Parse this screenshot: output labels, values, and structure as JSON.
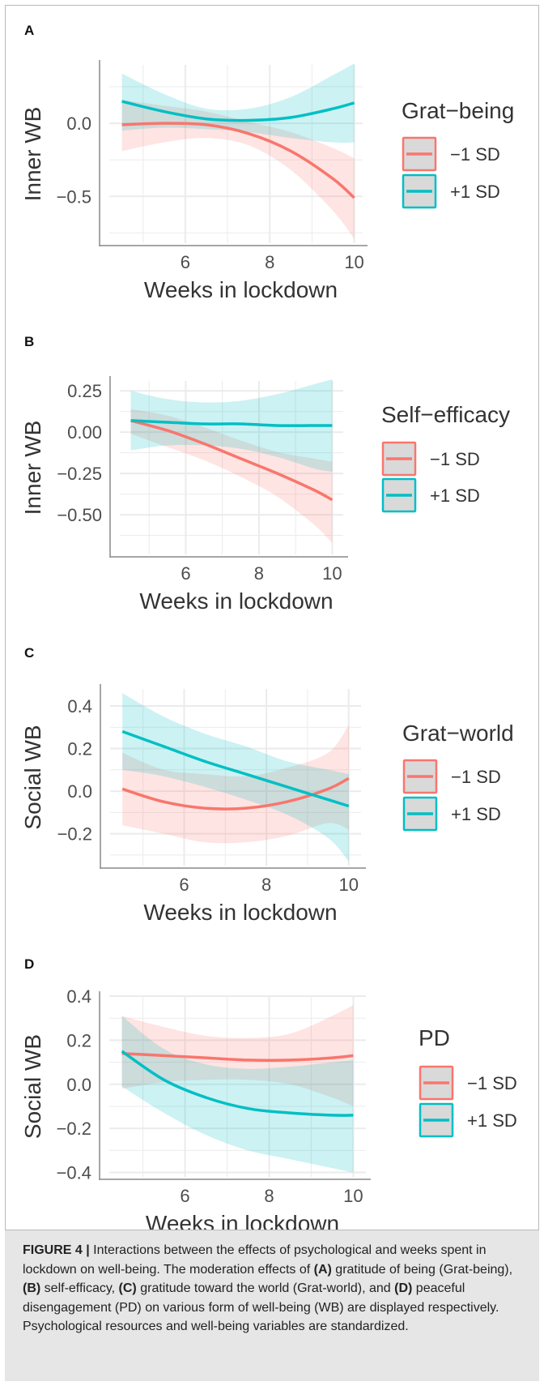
{
  "figure": {
    "caption_label": "FIGURE 4 |",
    "caption_parts": [
      {
        "text": " Interactions between the effects of psychological and weeks spent in lockdown on well-being. The moderation effects of ",
        "bold": false
      },
      {
        "text": "(A)",
        "bold": true
      },
      {
        "text": " gratitude of being (Grat-being), ",
        "bold": false
      },
      {
        "text": "(B)",
        "bold": true
      },
      {
        "text": " self-efficacy, ",
        "bold": false
      },
      {
        "text": "(C)",
        "bold": true
      },
      {
        "text": " gratitude toward the world (Grat-world), and ",
        "bold": false
      },
      {
        "text": "(D)",
        "bold": true
      },
      {
        "text": " peaceful disengagement (PD) on various form of well-being (WB) are displayed respectively. Psychological resources and well-being variables are standardized.",
        "bold": false
      }
    ]
  },
  "colors": {
    "minus_sd": "#F8766D",
    "plus_sd": "#00BFC4",
    "grid": "#EBEBEB",
    "axis": "#888888",
    "text": "#4D4D4D"
  },
  "chart_data": [
    {
      "panel": "A",
      "type": "line",
      "xlabel": "Weeks in lockdown",
      "ylabel": "Inner WB",
      "xlim": [
        4.2,
        10.2
      ],
      "ylim": [
        -0.82,
        0.4
      ],
      "xticks": [
        6,
        8,
        10
      ],
      "yticks": [
        0.0,
        -0.5
      ],
      "ytick_labels": [
        "0.0",
        "−0.5"
      ],
      "legend_title": "Grat−being",
      "legend_position": "right",
      "series": [
        {
          "name": "−1 SD",
          "color": "#F8766D",
          "x": [
            4.5,
            5.5,
            6.5,
            7.5,
            8.5,
            9.5,
            10.0
          ],
          "y": [
            -0.01,
            0.0,
            -0.01,
            -0.07,
            -0.19,
            -0.38,
            -0.51
          ],
          "lower": [
            -0.19,
            -0.13,
            -0.1,
            -0.15,
            -0.32,
            -0.6,
            -0.79
          ],
          "upper": [
            0.16,
            0.12,
            0.08,
            0.01,
            -0.06,
            -0.17,
            -0.24
          ]
        },
        {
          "name": "+1 SD",
          "color": "#00BFC4",
          "x": [
            4.5,
            5.5,
            6.5,
            7.5,
            8.5,
            9.5,
            10.0
          ],
          "y": [
            0.15,
            0.08,
            0.03,
            0.02,
            0.04,
            0.1,
            0.14
          ],
          "lower": [
            -0.05,
            -0.03,
            -0.04,
            -0.06,
            -0.1,
            -0.13,
            -0.13
          ],
          "upper": [
            0.34,
            0.2,
            0.1,
            0.1,
            0.18,
            0.33,
            0.41
          ]
        }
      ]
    },
    {
      "panel": "B",
      "type": "line",
      "xlabel": "Weeks in lockdown",
      "ylabel": "Inner WB",
      "xlim": [
        4.2,
        10.3
      ],
      "ylim": [
        -0.74,
        0.31
      ],
      "xticks": [
        6,
        8,
        10
      ],
      "yticks": [
        0.25,
        0.0,
        -0.25,
        -0.5
      ],
      "ytick_labels": [
        "0.25",
        "0.00",
        "−0.25",
        "−0.50"
      ],
      "legend_title": "Self−efficacy",
      "legend_position": "right",
      "series": [
        {
          "name": "−1 SD",
          "color": "#F8766D",
          "x": [
            4.5,
            5.5,
            6.5,
            7.5,
            8.5,
            9.5,
            10.0
          ],
          "y": [
            0.07,
            0.01,
            -0.07,
            -0.16,
            -0.25,
            -0.35,
            -0.41
          ],
          "lower": [
            -0.01,
            -0.09,
            -0.17,
            -0.27,
            -0.39,
            -0.56,
            -0.67
          ],
          "upper": [
            0.14,
            0.1,
            0.03,
            -0.05,
            -0.12,
            -0.16,
            -0.18
          ]
        },
        {
          "name": "+1 SD",
          "color": "#00BFC4",
          "x": [
            4.5,
            5.5,
            6.5,
            7.5,
            8.5,
            9.5,
            10.0
          ],
          "y": [
            0.07,
            0.06,
            0.05,
            0.05,
            0.04,
            0.04,
            0.04
          ],
          "lower": [
            -0.11,
            -0.08,
            -0.08,
            -0.1,
            -0.15,
            -0.22,
            -0.24
          ],
          "upper": [
            0.25,
            0.2,
            0.18,
            0.19,
            0.23,
            0.29,
            0.32
          ]
        }
      ]
    },
    {
      "panel": "C",
      "type": "line",
      "xlabel": "Weeks in lockdown",
      "ylabel": "Social WB",
      "xlim": [
        4.2,
        10.3
      ],
      "ylim": [
        -0.35,
        0.48
      ],
      "xticks": [
        6,
        8,
        10
      ],
      "yticks": [
        0.4,
        0.2,
        0.0,
        -0.2
      ],
      "ytick_labels": [
        "0.4",
        "0.2",
        "0.0",
        "−0.2"
      ],
      "legend_title": "Grat−world",
      "legend_position": "right",
      "series": [
        {
          "name": "−1 SD",
          "color": "#F8766D",
          "x": [
            4.5,
            5.5,
            6.5,
            7.5,
            8.5,
            9.5,
            10.0
          ],
          "y": [
            0.01,
            -0.05,
            -0.08,
            -0.08,
            -0.05,
            0.01,
            0.06
          ],
          "lower": [
            -0.16,
            -0.2,
            -0.24,
            -0.24,
            -0.21,
            -0.15,
            -0.18
          ],
          "upper": [
            0.18,
            0.1,
            0.08,
            0.07,
            0.11,
            0.18,
            0.31
          ]
        },
        {
          "name": "+1 SD",
          "color": "#00BFC4",
          "x": [
            4.5,
            5.5,
            6.5,
            7.5,
            8.5,
            9.5,
            10.0
          ],
          "y": [
            0.28,
            0.21,
            0.14,
            0.08,
            0.02,
            -0.04,
            -0.07
          ],
          "lower": [
            0.1,
            0.07,
            0.02,
            -0.04,
            -0.11,
            -0.22,
            -0.33
          ],
          "upper": [
            0.46,
            0.35,
            0.27,
            0.21,
            0.14,
            0.1,
            0.08
          ]
        }
      ]
    },
    {
      "panel": "D",
      "type": "line",
      "xlabel": "Weeks in lockdown",
      "ylabel": "Social WB",
      "xlim": [
        4.2,
        10.3
      ],
      "ylim": [
        -0.42,
        0.4
      ],
      "xticks": [
        6,
        8,
        10
      ],
      "yticks": [
        0.4,
        0.2,
        0.0,
        -0.2,
        -0.4
      ],
      "ytick_labels": [
        "0.4",
        "0.2",
        "0.0",
        "−0.2",
        "−0.4"
      ],
      "legend_title": "PD",
      "legend_position": "right",
      "series": [
        {
          "name": "−1 SD",
          "color": "#F8766D",
          "x": [
            4.5,
            5.5,
            6.5,
            7.5,
            8.5,
            9.5,
            10.0
          ],
          "y": [
            0.14,
            0.13,
            0.12,
            0.11,
            0.11,
            0.12,
            0.13
          ],
          "lower": [
            -0.02,
            0.01,
            0.02,
            0.02,
            0.0,
            -0.06,
            -0.1
          ],
          "upper": [
            0.31,
            0.26,
            0.22,
            0.21,
            0.23,
            0.31,
            0.36
          ]
        },
        {
          "name": "+1 SD",
          "color": "#00BFC4",
          "x": [
            4.5,
            5.5,
            6.5,
            7.5,
            8.5,
            9.5,
            10.0
          ],
          "y": [
            0.15,
            0.02,
            -0.06,
            -0.11,
            -0.13,
            -0.14,
            -0.14
          ],
          "lower": [
            -0.01,
            -0.13,
            -0.23,
            -0.3,
            -0.34,
            -0.38,
            -0.4
          ],
          "upper": [
            0.31,
            0.16,
            0.09,
            0.07,
            0.08,
            0.1,
            0.11
          ]
        }
      ]
    }
  ]
}
